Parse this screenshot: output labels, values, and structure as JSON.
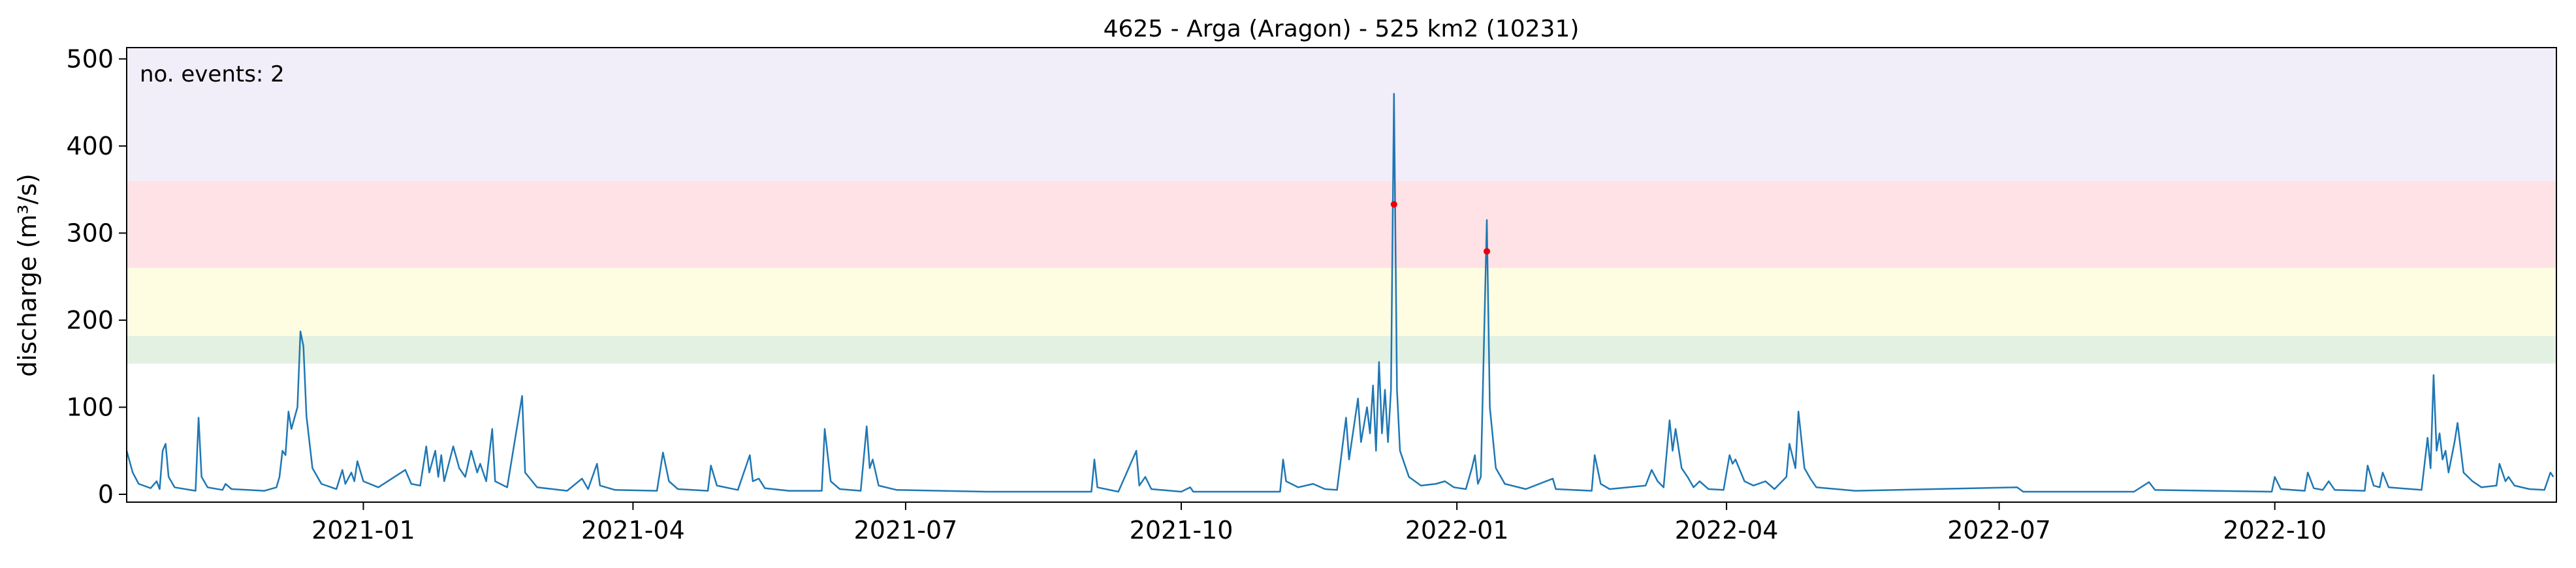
{
  "chart_data": {
    "type": "line",
    "title": "4625 - Arga (Aragon) - 525 km2 (10231)",
    "y_label": "discharge (m³/s)",
    "annotation": "no. events: 2",
    "annotation_color": "#e8000b",
    "xlim": [
      -79,
      732
    ],
    "ylim": [
      -9,
      513
    ],
    "xticks": [
      {
        "value": 0,
        "label": "2021-01"
      },
      {
        "value": 90,
        "label": "2021-04"
      },
      {
        "value": 181,
        "label": "2021-07"
      },
      {
        "value": 273,
        "label": "2021-10"
      },
      {
        "value": 365,
        "label": "2022-01"
      },
      {
        "value": 455,
        "label": "2022-04"
      },
      {
        "value": 546,
        "label": "2022-07"
      },
      {
        "value": 638,
        "label": "2022-10"
      }
    ],
    "yticks": [
      0,
      100,
      200,
      300,
      400,
      500
    ],
    "bands": [
      {
        "from": 150,
        "to": 182,
        "color": "#e3f1e3"
      },
      {
        "from": 182,
        "to": 260,
        "color": "#fefde2"
      },
      {
        "from": 260,
        "to": 360,
        "color": "#ffe2e5"
      },
      {
        "from": 360,
        "to": 513,
        "color": "#f2eef9"
      }
    ],
    "series": [
      {
        "color": "#1f77b4",
        "x": [
          -79,
          -77,
          -75,
          -71,
          -69,
          -68,
          -67,
          -66,
          -65,
          -63,
          -56,
          -55,
          -54,
          -52,
          -47,
          -46,
          -44,
          -33,
          -29,
          -28,
          -27,
          -26,
          -25,
          -24,
          -22,
          -21,
          -20,
          -19,
          -17,
          -14,
          -9,
          -7,
          -6,
          -4,
          -3,
          -2,
          0,
          5,
          14,
          16,
          19,
          21,
          22,
          24,
          25,
          26,
          27,
          30,
          32,
          34,
          36,
          38,
          39,
          41,
          43,
          44,
          48,
          53,
          54,
          58,
          68,
          73,
          75,
          78,
          79,
          84,
          98,
          100,
          102,
          105,
          115,
          116,
          118,
          125,
          129,
          130,
          132,
          134,
          142,
          153,
          154,
          156,
          159,
          166,
          168,
          169,
          170,
          172,
          178,
          208,
          243,
          244,
          245,
          252,
          258,
          259,
          261,
          263,
          273,
          276,
          277,
          306,
          307,
          308,
          312,
          317,
          321,
          325,
          328,
          329,
          332,
          333,
          335,
          336,
          337,
          338,
          339,
          340,
          341,
          342,
          343,
          344,
          345,
          346,
          349,
          353,
          358,
          361,
          364,
          368,
          370,
          371,
          372,
          373,
          375,
          376,
          378,
          381,
          388,
          397,
          398,
          410,
          411,
          413,
          416,
          428,
          430,
          432,
          434,
          436,
          437,
          438,
          440,
          442,
          444,
          446,
          449,
          454,
          456,
          457,
          458,
          461,
          464,
          468,
          471,
          475,
          476,
          478,
          479,
          481,
          483,
          485,
          498,
          552,
          554,
          591,
          596,
          598,
          637,
          638,
          640,
          648,
          649,
          651,
          654,
          656,
          658,
          668,
          669,
          671,
          673,
          674,
          676,
          687,
          689,
          690,
          691,
          692,
          693,
          694,
          695,
          696,
          698,
          699,
          701,
          704,
          707,
          712,
          713,
          715,
          716,
          718,
          723,
          728,
          730,
          731
        ],
        "values": [
          50,
          25,
          12,
          7,
          15,
          6,
          50,
          58,
          20,
          8,
          4,
          88,
          20,
          8,
          5,
          12,
          6,
          4,
          8,
          20,
          50,
          45,
          95,
          75,
          100,
          187,
          170,
          90,
          30,
          12,
          6,
          28,
          12,
          25,
          15,
          38,
          15,
          8,
          28,
          12,
          10,
          55,
          25,
          50,
          20,
          45,
          15,
          55,
          30,
          20,
          50,
          25,
          35,
          15,
          75,
          15,
          8,
          113,
          25,
          8,
          4,
          18,
          6,
          35,
          10,
          5,
          4,
          48,
          15,
          6,
          4,
          33,
          10,
          5,
          45,
          15,
          18,
          7,
          4,
          4,
          75,
          15,
          6,
          4,
          78,
          30,
          40,
          10,
          5,
          3,
          3,
          40,
          8,
          3,
          50,
          10,
          20,
          6,
          3,
          8,
          3,
          3,
          40,
          15,
          8,
          12,
          6,
          5,
          88,
          40,
          110,
          60,
          100,
          70,
          125,
          50,
          152,
          70,
          120,
          60,
          120,
          460,
          120,
          50,
          20,
          10,
          12,
          15,
          8,
          6,
          30,
          45,
          12,
          20,
          315,
          100,
          30,
          12,
          6,
          18,
          6,
          4,
          45,
          12,
          6,
          10,
          28,
          15,
          8,
          85,
          50,
          75,
          30,
          20,
          8,
          15,
          6,
          5,
          45,
          35,
          40,
          15,
          10,
          15,
          6,
          20,
          58,
          30,
          95,
          30,
          18,
          8,
          4,
          8,
          3,
          3,
          14,
          5,
          3,
          20,
          6,
          4,
          25,
          7,
          5,
          15,
          5,
          4,
          33,
          10,
          8,
          25,
          8,
          5,
          65,
          30,
          137,
          50,
          70,
          40,
          50,
          25,
          60,
          82,
          25,
          15,
          8,
          10,
          35,
          15,
          20,
          10,
          6,
          5,
          25,
          20
        ]
      }
    ],
    "events": {
      "color": "#e8000b",
      "x": [
        344,
        375
      ],
      "values": [
        333,
        279
      ]
    }
  }
}
